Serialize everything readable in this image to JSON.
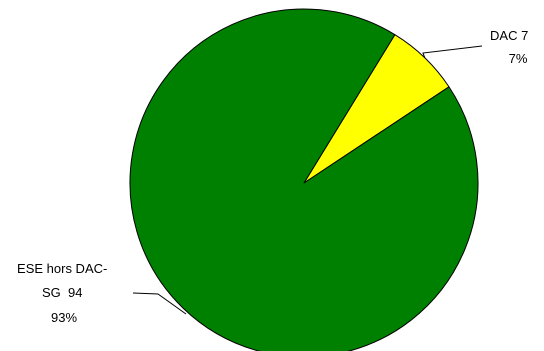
{
  "chart_data": {
    "type": "pie",
    "slices": [
      {
        "label_lines": [
          "DAC 7",
          "7%"
        ],
        "value": 7,
        "percent": 7,
        "color": "#ffff00"
      },
      {
        "label_lines": [
          "ESE hors DAC-",
          "SG  94",
          "93%"
        ],
        "value": 94,
        "percent": 93,
        "color": "#008000"
      }
    ],
    "border_color": "#000000"
  }
}
